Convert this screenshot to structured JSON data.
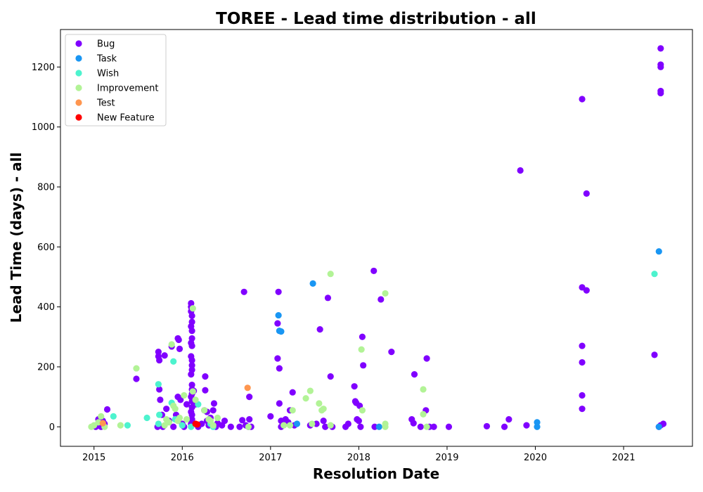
{
  "chart_data": {
    "type": "scatter",
    "title": "TOREE - Lead time distribution - all",
    "xlabel": "Resolution Date",
    "ylabel": "Lead Time (days) - all",
    "xlim": [
      2014.62,
      2021.78
    ],
    "ylim": [
      -65,
      1325
    ],
    "xticks": [
      2015,
      2016,
      2017,
      2018,
      2019,
      2020,
      2021
    ],
    "yticks": [
      0,
      200,
      400,
      600,
      800,
      1000,
      1200
    ],
    "grid": false,
    "legend_position": "top-left",
    "series": [
      {
        "name": "Bug",
        "color": "#8000ff",
        "points": [
          [
            2015.02,
            0
          ],
          [
            2015.05,
            25
          ],
          [
            2015.07,
            5
          ],
          [
            2015.08,
            0
          ],
          [
            2015.1,
            20
          ],
          [
            2015.12,
            10
          ],
          [
            2015.15,
            58
          ],
          [
            2015.48,
            160
          ],
          [
            2015.72,
            0
          ],
          [
            2015.73,
            250
          ],
          [
            2015.73,
            235
          ],
          [
            2015.74,
            222
          ],
          [
            2015.74,
            125
          ],
          [
            2015.75,
            90
          ],
          [
            2015.77,
            40
          ],
          [
            2015.78,
            0
          ],
          [
            2015.8,
            238
          ],
          [
            2015.82,
            60
          ],
          [
            2015.85,
            20
          ],
          [
            2015.88,
            268
          ],
          [
            2015.9,
            0
          ],
          [
            2015.93,
            40
          ],
          [
            2015.95,
            295
          ],
          [
            2015.96,
            290
          ],
          [
            2015.95,
            100
          ],
          [
            2015.97,
            260
          ],
          [
            2015.98,
            90
          ],
          [
            2016.0,
            10
          ],
          [
            2016.02,
            0
          ],
          [
            2016.05,
            75
          ],
          [
            2016.1,
            412
          ],
          [
            2016.1,
            400
          ],
          [
            2016.1,
            385
          ],
          [
            2016.11,
            370
          ],
          [
            2016.11,
            350
          ],
          [
            2016.1,
            335
          ],
          [
            2016.11,
            320
          ],
          [
            2016.11,
            295
          ],
          [
            2016.1,
            280
          ],
          [
            2016.11,
            270
          ],
          [
            2016.1,
            235
          ],
          [
            2016.11,
            222
          ],
          [
            2016.11,
            205
          ],
          [
            2016.11,
            190
          ],
          [
            2016.1,
            175
          ],
          [
            2016.11,
            140
          ],
          [
            2016.11,
            125
          ],
          [
            2016.11,
            110
          ],
          [
            2016.1,
            100
          ],
          [
            2016.11,
            85
          ],
          [
            2016.11,
            65
          ],
          [
            2016.1,
            50
          ],
          [
            2016.11,
            40
          ],
          [
            2016.11,
            25
          ],
          [
            2016.1,
            10
          ],
          [
            2016.13,
            120
          ],
          [
            2016.15,
            75
          ],
          [
            2016.18,
            0
          ],
          [
            2016.22,
            10
          ],
          [
            2016.25,
            55
          ],
          [
            2016.26,
            168
          ],
          [
            2016.26,
            122
          ],
          [
            2016.28,
            50
          ],
          [
            2016.28,
            20
          ],
          [
            2016.3,
            5
          ],
          [
            2016.32,
            30
          ],
          [
            2016.35,
            55
          ],
          [
            2016.36,
            78
          ],
          [
            2016.38,
            0
          ],
          [
            2016.4,
            12
          ],
          [
            2016.45,
            5
          ],
          [
            2016.48,
            20
          ],
          [
            2016.55,
            0
          ],
          [
            2016.65,
            0
          ],
          [
            2016.68,
            22
          ],
          [
            2016.7,
            450
          ],
          [
            2016.72,
            5
          ],
          [
            2016.75,
            0
          ],
          [
            2016.76,
            100
          ],
          [
            2016.76,
            25
          ],
          [
            2016.78,
            0
          ],
          [
            2017.0,
            35
          ],
          [
            2017.08,
            228
          ],
          [
            2017.08,
            345
          ],
          [
            2017.09,
            450
          ],
          [
            2017.1,
            195
          ],
          [
            2017.1,
            78
          ],
          [
            2017.12,
            20
          ],
          [
            2017.12,
            0
          ],
          [
            2017.15,
            10
          ],
          [
            2017.17,
            25
          ],
          [
            2017.2,
            15
          ],
          [
            2017.22,
            55
          ],
          [
            2017.25,
            115
          ],
          [
            2017.27,
            5
          ],
          [
            2017.45,
            5
          ],
          [
            2017.52,
            10
          ],
          [
            2017.56,
            325
          ],
          [
            2017.6,
            20
          ],
          [
            2017.62,
            0
          ],
          [
            2017.65,
            430
          ],
          [
            2017.68,
            168
          ],
          [
            2017.7,
            0
          ],
          [
            2017.85,
            0
          ],
          [
            2017.88,
            10
          ],
          [
            2017.95,
            135
          ],
          [
            2017.96,
            85
          ],
          [
            2017.97,
            80
          ],
          [
            2017.98,
            25
          ],
          [
            2018.0,
            20
          ],
          [
            2018.01,
            70
          ],
          [
            2018.02,
            0
          ],
          [
            2018.04,
            300
          ],
          [
            2018.05,
            205
          ],
          [
            2018.17,
            520
          ],
          [
            2018.18,
            0
          ],
          [
            2018.25,
            425
          ],
          [
            2018.37,
            250
          ],
          [
            2018.6,
            25
          ],
          [
            2018.62,
            12
          ],
          [
            2018.63,
            175
          ],
          [
            2018.7,
            0
          ],
          [
            2018.76,
            55
          ],
          [
            2018.77,
            228
          ],
          [
            2018.8,
            0
          ],
          [
            2018.85,
            0
          ],
          [
            2019.02,
            0
          ],
          [
            2019.45,
            2
          ],
          [
            2019.65,
            0
          ],
          [
            2019.7,
            25
          ],
          [
            2019.83,
            855
          ],
          [
            2019.9,
            5
          ],
          [
            2020.53,
            1093
          ],
          [
            2020.53,
            465
          ],
          [
            2020.53,
            270
          ],
          [
            2020.53,
            215
          ],
          [
            2020.53,
            105
          ],
          [
            2020.53,
            60
          ],
          [
            2020.58,
            778
          ],
          [
            2020.58,
            455
          ],
          [
            2021.35,
            240
          ],
          [
            2021.4,
            0
          ],
          [
            2021.42,
            5
          ],
          [
            2021.42,
            1262
          ],
          [
            2021.42,
            1208
          ],
          [
            2021.42,
            1200
          ],
          [
            2021.42,
            1120
          ],
          [
            2021.42,
            1113
          ],
          [
            2021.45,
            10
          ]
        ]
      },
      {
        "name": "Task",
        "color": "#1996f3",
        "points": [
          [
            2017.09,
            372
          ],
          [
            2017.1,
            320
          ],
          [
            2017.12,
            318
          ],
          [
            2017.3,
            10
          ],
          [
            2017.48,
            478
          ],
          [
            2018.23,
            0
          ],
          [
            2020.02,
            15
          ],
          [
            2020.02,
            0
          ],
          [
            2021.4,
            0
          ],
          [
            2021.4,
            585
          ]
        ]
      },
      {
        "name": "Wish",
        "color": "#4df3ce",
        "points": [
          [
            2015.22,
            35
          ],
          [
            2015.38,
            5
          ],
          [
            2015.6,
            30
          ],
          [
            2015.73,
            142
          ],
          [
            2015.74,
            40
          ],
          [
            2015.73,
            10
          ],
          [
            2015.88,
            80
          ],
          [
            2015.9,
            218
          ],
          [
            2015.92,
            25
          ],
          [
            2016.0,
            5
          ],
          [
            2016.1,
            0
          ],
          [
            2016.18,
            75
          ],
          [
            2016.32,
            10
          ],
          [
            2016.35,
            0
          ],
          [
            2021.35,
            510
          ]
        ]
      },
      {
        "name": "Improvement",
        "color": "#b2f396",
        "points": [
          [
            2014.97,
            0
          ],
          [
            2015.0,
            5
          ],
          [
            2015.05,
            15
          ],
          [
            2015.08,
            35
          ],
          [
            2015.12,
            0
          ],
          [
            2015.3,
            5
          ],
          [
            2015.48,
            195
          ],
          [
            2015.8,
            5
          ],
          [
            2015.82,
            25
          ],
          [
            2015.85,
            15
          ],
          [
            2015.88,
            275
          ],
          [
            2015.9,
            70
          ],
          [
            2015.92,
            60
          ],
          [
            2015.95,
            20
          ],
          [
            2015.97,
            30
          ],
          [
            2016.02,
            105
          ],
          [
            2016.05,
            25
          ],
          [
            2016.12,
            118
          ],
          [
            2016.12,
            395
          ],
          [
            2016.15,
            90
          ],
          [
            2016.25,
            55
          ],
          [
            2016.3,
            25
          ],
          [
            2016.32,
            20
          ],
          [
            2016.35,
            5
          ],
          [
            2016.4,
            30
          ],
          [
            2016.75,
            0
          ],
          [
            2017.15,
            5
          ],
          [
            2017.22,
            5
          ],
          [
            2017.25,
            55
          ],
          [
            2017.4,
            95
          ],
          [
            2017.45,
            120
          ],
          [
            2017.47,
            10
          ],
          [
            2017.55,
            78
          ],
          [
            2017.58,
            55
          ],
          [
            2017.6,
            60
          ],
          [
            2017.68,
            5
          ],
          [
            2017.68,
            510
          ],
          [
            2018.03,
            258
          ],
          [
            2018.04,
            55
          ],
          [
            2018.3,
            10
          ],
          [
            2018.3,
            445
          ],
          [
            2018.3,
            0
          ],
          [
            2018.73,
            125
          ],
          [
            2018.73,
            42
          ],
          [
            2018.77,
            0
          ]
        ]
      },
      {
        "name": "Test",
        "color": "#ff964f",
        "points": [
          [
            2015.1,
            12
          ],
          [
            2016.74,
            130
          ]
        ]
      },
      {
        "name": "New Feature",
        "color": "#ff0000",
        "points": [
          [
            2016.15,
            10
          ],
          [
            2016.17,
            8
          ]
        ]
      }
    ]
  }
}
